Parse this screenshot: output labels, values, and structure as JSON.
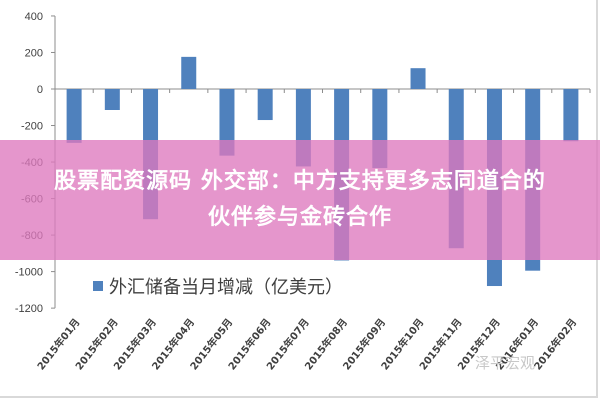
{
  "headline": {
    "line1": "股票配资源码 外交部：中方支持更多志同道合的",
    "line2": "伙伴参与金砖合作"
  },
  "watermark": "泽平宏观",
  "colors": {
    "bar": "#4f81bd",
    "ribbon": "#de78be",
    "axis": "#8c8c8c",
    "text": "#404040"
  },
  "chart_data": {
    "type": "bar",
    "title": "",
    "xlabel": "",
    "ylabel": "",
    "ylim": [
      -1200,
      400
    ],
    "yticks": [
      400,
      200,
      0,
      -200,
      -400,
      -600,
      -800,
      -1000,
      -1200
    ],
    "grid": false,
    "legend_position": "bottom-inside",
    "categories": [
      "2015年01月",
      "2015年02月",
      "2015年03月",
      "2015年04月",
      "2015年05月",
      "2015年06月",
      "2015年07月",
      "2015年08月",
      "2015年09月",
      "2015年10月",
      "2015年11月",
      "2015年12月",
      "2016年01月",
      "2016年02月"
    ],
    "series": [
      {
        "name": "外汇储备当月增减（亿美元）",
        "values": [
          -295,
          -115,
          -713,
          176,
          -365,
          -170,
          -424,
          -939,
          -433,
          114,
          -872,
          -1079,
          -995,
          -286
        ]
      }
    ]
  }
}
